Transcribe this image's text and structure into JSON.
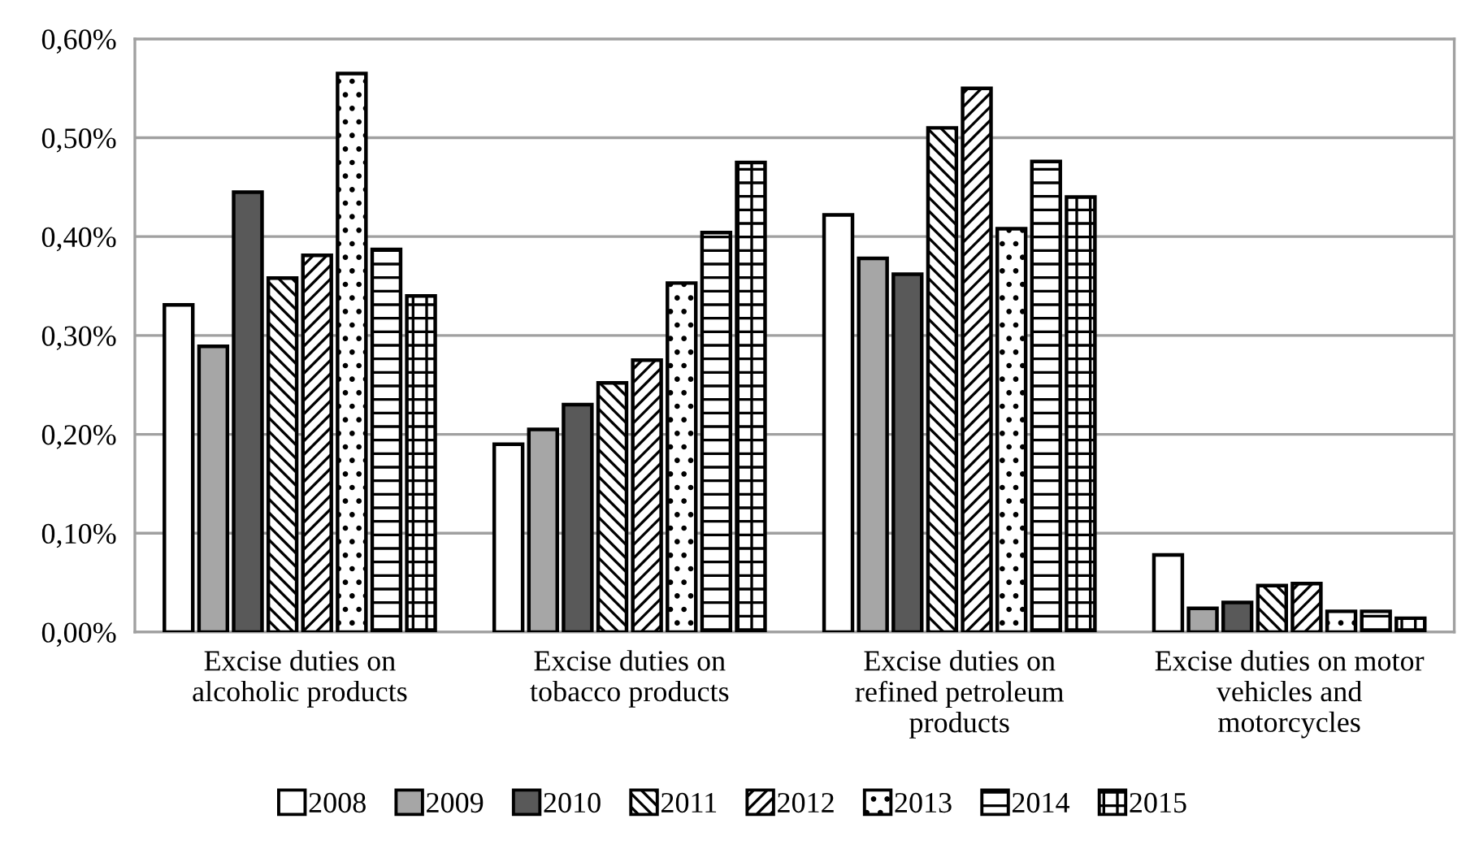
{
  "chart_data": {
    "type": "bar",
    "categories": [
      "Excise duties on\nalcoholic products",
      "Excise duties on\ntobacco products",
      "Excise duties on\nrefined petroleum\nproducts",
      "Excise duties on motor\nvehicles and\nmotorcycles"
    ],
    "series": [
      {
        "name": "2008",
        "color": "#ffffff",
        "values": [
          0.331,
          0.19,
          0.422,
          0.078
        ]
      },
      {
        "name": "2009",
        "color": "#a6a6a6",
        "values": [
          0.289,
          0.205,
          0.378,
          0.024
        ]
      },
      {
        "name": "2010",
        "color": "#595959",
        "values": [
          0.445,
          0.23,
          0.362,
          0.03
        ]
      },
      {
        "name": "2011",
        "color": "#000000",
        "values": [
          0.358,
          0.252,
          0.51,
          0.047
        ]
      },
      {
        "name": "2012",
        "color": "#000000",
        "values": [
          0.381,
          0.275,
          0.55,
          0.049
        ]
      },
      {
        "name": "2013",
        "color": "#000000",
        "values": [
          0.565,
          0.353,
          0.408,
          0.021
        ]
      },
      {
        "name": "2014",
        "color": "#000000",
        "values": [
          0.387,
          0.404,
          0.476,
          0.021
        ]
      },
      {
        "name": "2015",
        "color": "#000000",
        "values": [
          0.34,
          0.475,
          0.44,
          0.014
        ]
      }
    ],
    "ylim": [
      0,
      0.6
    ],
    "yticks": [
      {
        "value": 0,
        "label": "0,00%"
      },
      {
        "value": 0.1,
        "label": "0,10%"
      },
      {
        "value": 0.2,
        "label": "0,20%"
      },
      {
        "value": 0.3,
        "label": "0,30%"
      },
      {
        "value": 0.4,
        "label": "0,40%"
      },
      {
        "value": 0.5,
        "label": "0,50%"
      },
      {
        "value": 0.6,
        "label": "0,60%"
      }
    ],
    "grid": "y",
    "legend": "bottom"
  }
}
